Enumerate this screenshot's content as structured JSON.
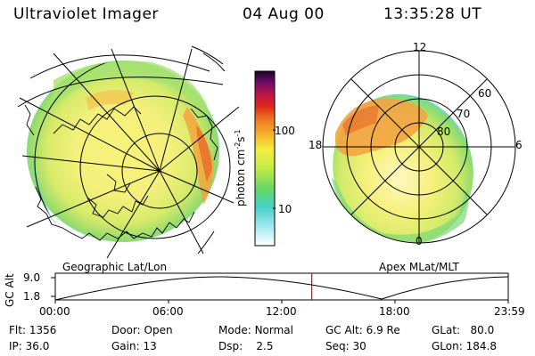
{
  "header": {
    "instrument": "Ultraviolet Imager",
    "date": "04 Aug 00",
    "time": "13:35:28 UT"
  },
  "colorbar": {
    "unit_label": "photon cm",
    "unit_exp1": "-2",
    "unit_mid": "s",
    "unit_exp2": "-1",
    "ticks": [
      "100",
      "10"
    ]
  },
  "left_map": {
    "caption": "Geographic Lat/Lon"
  },
  "right_map": {
    "caption": "Apex MLat/MLT",
    "mlt_labels": {
      "top": "12",
      "left": "18",
      "right": "6",
      "bottom": "0"
    },
    "lat_labels": [
      "60",
      "70",
      "80"
    ]
  },
  "orbit_plot": {
    "ylabel": "GC Alt",
    "yticks": [
      "9.0",
      "1.8"
    ],
    "xticks": [
      "00:00",
      "06:00",
      "12:00",
      "18:00",
      "23:59"
    ],
    "marker_time_hours": 13.59
  },
  "status": {
    "flt_label": "Flt:",
    "flt_value": "1356",
    "ip_label": "IP:",
    "ip_value": "36.0",
    "door_label": "Door:",
    "door_value": "Open",
    "gain_label": "Gain:",
    "gain_value": "13",
    "mode_label": "Mode:",
    "mode_value": "Normal",
    "dsp_label": "Dsp:",
    "dsp_value": "2.5",
    "gcalt_label": "GC Alt:",
    "gcalt_value": "6.9 Re",
    "seq_label": "Seq:",
    "seq_value": "30",
    "glat_label": "GLat:",
    "glat_value": "80.0",
    "glon_label": "GLon:",
    "glon_value": "184.8"
  },
  "colors": {
    "dim": "#8fe37a",
    "mid": "#f3f06e",
    "bright": "#f4a23c",
    "peak": "#e86b2a",
    "edge": "#5ed3d6"
  }
}
